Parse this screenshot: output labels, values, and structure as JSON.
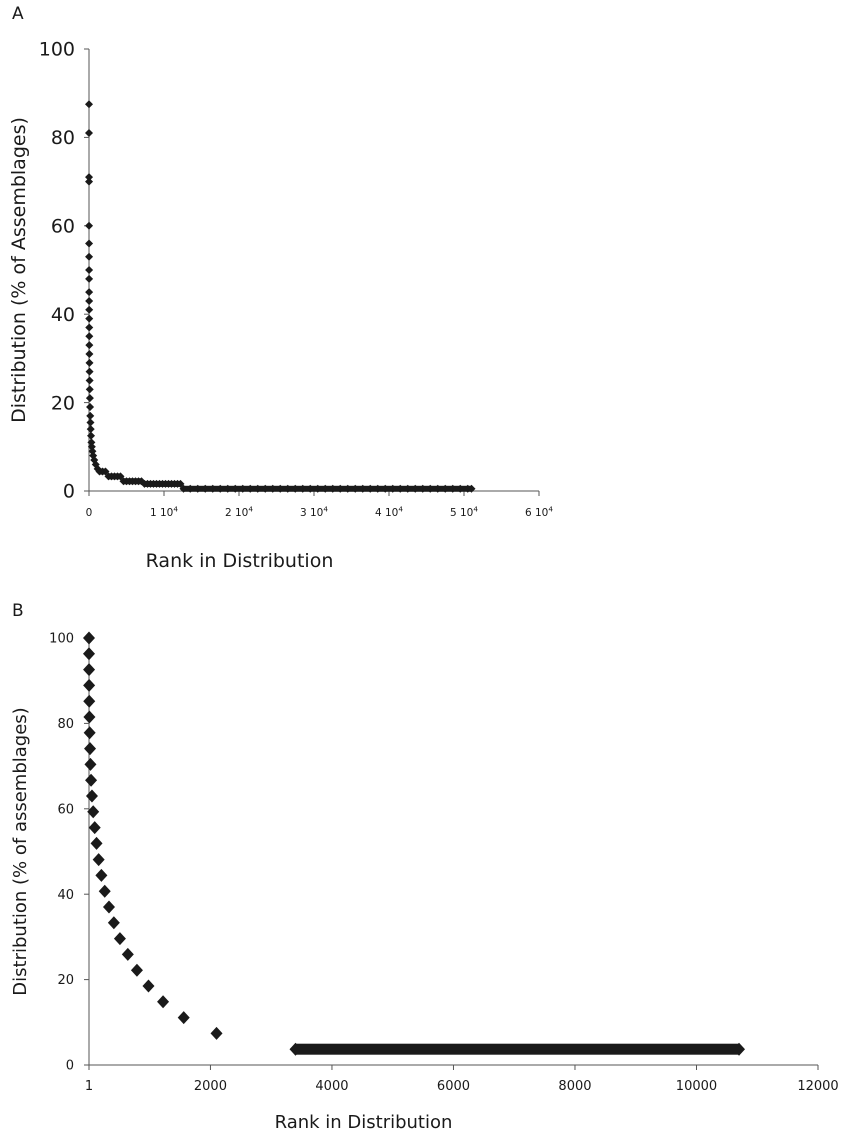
{
  "chart_data": [
    {
      "panel": "A",
      "type": "scatter",
      "xlabel": "Rank in Distribution",
      "ylabel": "Distribution (% of Assemblages)",
      "xlim": [
        0,
        60000
      ],
      "ylim": [
        0,
        100
      ],
      "x_ticks": [
        0,
        10000,
        20000,
        30000,
        40000,
        50000,
        60000
      ],
      "x_tick_labels": [
        {
          "base": "0",
          "exp": ""
        },
        {
          "base": "1 10",
          "exp": "4"
        },
        {
          "base": "2 10",
          "exp": "4"
        },
        {
          "base": "3 10",
          "exp": "4"
        },
        {
          "base": "4 10",
          "exp": "4"
        },
        {
          "base": "5 10",
          "exp": "4"
        },
        {
          "base": "6 10",
          "exp": "4"
        }
      ],
      "y_ticks": [
        0,
        20,
        40,
        60,
        80,
        100
      ],
      "y_tick_labels": [
        "0",
        "20",
        "40",
        "60",
        "80",
        "100"
      ],
      "marker": "diamond",
      "color": "#1a1a1a",
      "series": [
        {
          "points": [
            [
              1,
              87.5
            ],
            [
              2,
              81
            ],
            [
              3,
              71
            ],
            [
              4,
              70
            ],
            [
              5,
              60
            ],
            [
              7,
              56
            ],
            [
              9,
              53
            ],
            [
              11,
              50
            ],
            [
              13,
              48
            ],
            [
              16,
              45
            ],
            [
              20,
              43
            ],
            [
              25,
              41
            ],
            [
              30,
              39
            ],
            [
              35,
              37
            ],
            [
              40,
              35
            ],
            [
              45,
              33
            ],
            [
              55,
              31
            ],
            [
              65,
              29
            ],
            [
              75,
              27
            ],
            [
              85,
              25
            ],
            [
              100,
              23
            ],
            [
              120,
              21
            ],
            [
              140,
              19
            ],
            [
              165,
              17
            ],
            [
              195,
              15.5
            ],
            [
              230,
              14
            ],
            [
              270,
              12.5
            ],
            [
              320,
              11
            ],
            [
              380,
              10
            ],
            [
              460,
              9
            ],
            [
              560,
              8
            ],
            [
              700,
              7
            ],
            [
              900,
              6
            ],
            [
              1150,
              5
            ],
            [
              1400,
              4.4
            ],
            [
              1800,
              4.4
            ],
            [
              2200,
              4.4
            ],
            [
              2600,
              3.3
            ],
            [
              3000,
              3.3
            ],
            [
              3400,
              3.3
            ],
            [
              3800,
              3.3
            ],
            [
              4200,
              3.3
            ],
            [
              4600,
              2.2
            ],
            [
              5000,
              2.2
            ],
            [
              5400,
              2.2
            ],
            [
              5800,
              2.2
            ],
            [
              6200,
              2.2
            ],
            [
              6600,
              2.2
            ],
            [
              7000,
              2.2
            ],
            [
              7400,
              1.6
            ],
            [
              7800,
              1.6
            ],
            [
              8200,
              1.6
            ],
            [
              8600,
              1.6
            ],
            [
              9000,
              1.6
            ],
            [
              9400,
              1.6
            ],
            [
              9800,
              1.6
            ],
            [
              10200,
              1.6
            ],
            [
              10600,
              1.6
            ],
            [
              11000,
              1.6
            ],
            [
              11400,
              1.6
            ],
            [
              11800,
              1.6
            ],
            [
              12200,
              1.6
            ],
            [
              12600,
              0.5
            ],
            [
              13500,
              0.5
            ],
            [
              14500,
              0.5
            ],
            [
              15500,
              0.5
            ],
            [
              16500,
              0.5
            ],
            [
              17500,
              0.5
            ],
            [
              18500,
              0.5
            ],
            [
              19500,
              0.5
            ],
            [
              20500,
              0.5
            ],
            [
              21500,
              0.5
            ],
            [
              22500,
              0.5
            ],
            [
              23500,
              0.5
            ],
            [
              24500,
              0.5
            ],
            [
              25500,
              0.5
            ],
            [
              26500,
              0.5
            ],
            [
              27500,
              0.5
            ],
            [
              28500,
              0.5
            ],
            [
              29500,
              0.5
            ],
            [
              30500,
              0.5
            ],
            [
              31500,
              0.5
            ],
            [
              32500,
              0.5
            ],
            [
              33500,
              0.5
            ],
            [
              34500,
              0.5
            ],
            [
              35500,
              0.5
            ],
            [
              36500,
              0.5
            ],
            [
              37500,
              0.5
            ],
            [
              38500,
              0.5
            ],
            [
              39500,
              0.5
            ],
            [
              40500,
              0.5
            ],
            [
              41500,
              0.5
            ],
            [
              42500,
              0.5
            ],
            [
              43500,
              0.5
            ],
            [
              44500,
              0.5
            ],
            [
              45500,
              0.5
            ],
            [
              46500,
              0.5
            ],
            [
              47500,
              0.5
            ],
            [
              48500,
              0.5
            ],
            [
              49500,
              0.5
            ],
            [
              50500,
              0.5
            ],
            [
              51000,
              0.5
            ]
          ]
        }
      ]
    },
    {
      "panel": "B",
      "type": "scatter",
      "xlabel": "Rank in Distribution",
      "ylabel": "Distribution (% of assemblages)",
      "xlim": [
        1,
        12000
      ],
      "ylim": [
        0,
        100
      ],
      "x_ticks": [
        1,
        2000,
        4000,
        6000,
        8000,
        10000,
        12000
      ],
      "x_tick_labels": [
        {
          "base": "1",
          "exp": ""
        },
        {
          "base": "2000",
          "exp": ""
        },
        {
          "base": "4000",
          "exp": ""
        },
        {
          "base": "6000",
          "exp": ""
        },
        {
          "base": "8000",
          "exp": ""
        },
        {
          "base": "10000",
          "exp": ""
        },
        {
          "base": "12000",
          "exp": ""
        }
      ],
      "y_ticks": [
        0,
        20,
        40,
        60,
        80,
        100
      ],
      "y_tick_labels": [
        "0",
        "20",
        "40",
        "60",
        "80",
        "100"
      ],
      "marker": "diamond",
      "color": "#1a1a1a",
      "series": [
        {
          "points": [
            [
              1,
              100
            ],
            [
              1,
              96.3
            ],
            [
              2,
              92.6
            ],
            [
              3,
              88.9
            ],
            [
              5,
              85.2
            ],
            [
              8,
              81.5
            ],
            [
              12,
              77.8
            ],
            [
              18,
              74.1
            ],
            [
              25,
              70.4
            ],
            [
              35,
              66.7
            ],
            [
              50,
              63
            ],
            [
              70,
              59.3
            ],
            [
              95,
              55.6
            ],
            [
              125,
              51.9
            ],
            [
              160,
              48.1
            ],
            [
              205,
              44.4
            ],
            [
              260,
              40.7
            ],
            [
              330,
              37
            ],
            [
              410,
              33.3
            ],
            [
              510,
              29.6
            ],
            [
              640,
              25.9
            ],
            [
              790,
              22.2
            ],
            [
              980,
              18.5
            ],
            [
              1220,
              14.8
            ],
            [
              1560,
              11.1
            ],
            [
              2100,
              7.4
            ],
            [
              3400,
              3.7
            ],
            [
              10700,
              3.7
            ]
          ]
        }
      ]
    }
  ]
}
